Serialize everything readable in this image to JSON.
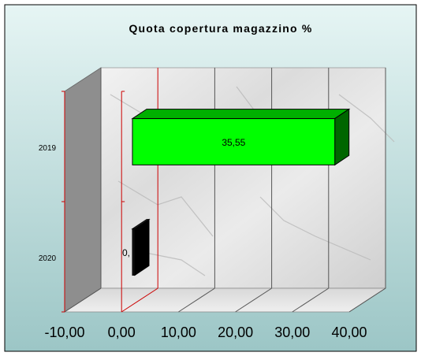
{
  "chart_data": {
    "type": "bar",
    "orientation": "horizontal",
    "three_d": true,
    "title": "Quota copertura magazzino %",
    "categories": [
      "2019",
      "2020"
    ],
    "series": [
      {
        "values": [
          35.55,
          0
        ]
      }
    ],
    "data_labels": [
      "35,55",
      "0,"
    ],
    "xlim": [
      -10,
      40
    ],
    "xticks": [
      -10,
      0,
      10,
      20,
      30,
      40
    ],
    "xtick_labels": [
      "-10,00",
      "0,00",
      "10,00",
      "20,00",
      "30,00",
      "40,00"
    ],
    "grid": true,
    "legend": "none",
    "colors": {
      "bar": "#00ff00",
      "bar_dark": "#006600",
      "bar_mid": "#00b000",
      "small_bar": "#111111",
      "background_top": "#e6f5f4",
      "background_bottom": "#9cc6c6",
      "left_wall": "#8e8e8e",
      "gridline": "#555555",
      "zero_line": "#cc0000"
    }
  }
}
